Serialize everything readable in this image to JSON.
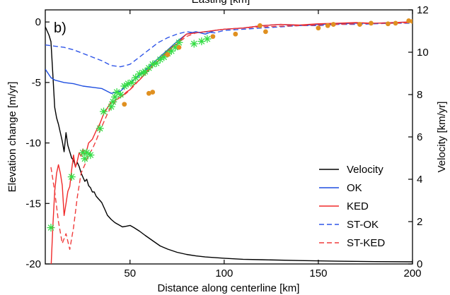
{
  "chart_data": {
    "type": "line",
    "top_label_clipped": "Easting [km]",
    "panel_label": "b)",
    "xlabel": "Distance along centerline [km]",
    "ylabel_left": "Elevation change [m/yr]",
    "ylabel_right": "Velocity [km/yr]",
    "xlim": [
      5,
      200
    ],
    "ylim_left": [
      -20,
      1
    ],
    "ylim_right": [
      0,
      12
    ],
    "x_ticks": [
      50,
      100,
      150,
      200
    ],
    "y_ticks_left": [
      0,
      -5,
      -10,
      -15,
      -20
    ],
    "y_ticks_right": [
      0,
      2,
      4,
      6,
      8,
      10,
      12
    ],
    "grid": false,
    "legend_position": "bottom-right",
    "colors": {
      "velocity": "#000000",
      "ok": "#1f4fe0",
      "ked": "#f02a2a",
      "st_ok": "#2f55e8",
      "st_ked": "#f03c3c",
      "green_markers": "#33dd44",
      "orange_markers": "#e09020"
    },
    "series": [
      {
        "name": "Velocity",
        "axis": "right",
        "style": "solid",
        "color_key": "velocity",
        "x": [
          5,
          6,
          7,
          8,
          9,
          10,
          11,
          12,
          13,
          14,
          15,
          16,
          17,
          18,
          19,
          20,
          21,
          22,
          23,
          24,
          25,
          26,
          27,
          28,
          29,
          30,
          31,
          32,
          33,
          34,
          35,
          36,
          37,
          38,
          39,
          40,
          42,
          44,
          46,
          48,
          50,
          52,
          55,
          58,
          62,
          66,
          70,
          75,
          80,
          85,
          90,
          100,
          110,
          120,
          140,
          160,
          180,
          200
        ],
        "values": [
          11.2,
          11.0,
          10.8,
          10.5,
          9.0,
          7.4,
          6.9,
          6.6,
          6.2,
          5.8,
          5.3,
          6.2,
          5.6,
          5.3,
          5.0,
          4.9,
          4.6,
          4.8,
          4.6,
          4.3,
          4.1,
          3.9,
          4.0,
          3.7,
          3.6,
          3.4,
          3.4,
          3.2,
          3.1,
          3.0,
          2.9,
          2.7,
          2.5,
          2.3,
          2.2,
          2.1,
          1.95,
          1.85,
          1.75,
          1.78,
          1.82,
          1.72,
          1.55,
          1.35,
          1.1,
          0.85,
          0.7,
          0.55,
          0.45,
          0.38,
          0.33,
          0.27,
          0.22,
          0.2,
          0.16,
          0.13,
          0.11,
          0.1
        ]
      },
      {
        "name": "OK",
        "axis": "left",
        "style": "solid",
        "color_key": "ok",
        "x": [
          5,
          8,
          10,
          15,
          20,
          25,
          30,
          35,
          40,
          45,
          50,
          55,
          60,
          65,
          70,
          75,
          80,
          85,
          90,
          95,
          100,
          110,
          120,
          130,
          140,
          150,
          160,
          170,
          180,
          190,
          200
        ],
        "values": [
          -3.9,
          -4.6,
          -4.8,
          -5.0,
          -5.1,
          -5.3,
          -5.4,
          -5.5,
          -5.9,
          -5.7,
          -5.0,
          -4.4,
          -3.7,
          -3.0,
          -2.3,
          -1.6,
          -1.0,
          -0.8,
          -1.0,
          -0.7,
          -0.6,
          -0.5,
          -0.3,
          -0.2,
          -0.3,
          -0.2,
          -0.15,
          -0.1,
          -0.1,
          -0.05,
          0.0
        ]
      },
      {
        "name": "KED",
        "axis": "left",
        "style": "solid",
        "color_key": "ked",
        "x": [
          8,
          9,
          10,
          11,
          12,
          13,
          14,
          15,
          16,
          17,
          18,
          19,
          20,
          21,
          22,
          23,
          24,
          25,
          26,
          27,
          28,
          30,
          32,
          34,
          36,
          38,
          40,
          42,
          44,
          46,
          48,
          50,
          52,
          55,
          58,
          60,
          62,
          65,
          68,
          70,
          72,
          75,
          78,
          80,
          85,
          90,
          95,
          100,
          110,
          120,
          130,
          140,
          150,
          160,
          170,
          180,
          190,
          200
        ],
        "values": [
          -20.5,
          -17.0,
          -14.0,
          -12.5,
          -11.8,
          -12.5,
          -13.5,
          -16.0,
          -15.0,
          -14.0,
          -13.6,
          -12.2,
          -11.0,
          -12.0,
          -11.5,
          -10.8,
          -11.1,
          -10.5,
          -11.0,
          -10.6,
          -10.0,
          -9.7,
          -9.0,
          -8.4,
          -7.6,
          -7.1,
          -6.6,
          -6.5,
          -6.3,
          -6.1,
          -5.8,
          -5.6,
          -5.2,
          -4.8,
          -4.3,
          -4.0,
          -3.6,
          -3.2,
          -2.7,
          -2.4,
          -2.1,
          -1.8,
          -1.3,
          -1.0,
          -0.9,
          -0.8,
          -0.7,
          -0.6,
          -0.5,
          -0.3,
          -0.2,
          -0.25,
          -0.15,
          -0.1,
          -0.05,
          -0.1,
          -0.05,
          0.0
        ]
      },
      {
        "name": "ST-OK",
        "axis": "left",
        "style": "dashed",
        "color_key": "st_ok",
        "x": [
          5,
          10,
          15,
          20,
          25,
          30,
          35,
          40,
          45,
          50,
          55,
          60,
          65,
          70,
          75,
          80,
          85,
          90,
          95,
          100,
          110,
          120,
          130,
          140,
          150,
          160,
          170,
          180,
          190,
          200
        ],
        "values": [
          -1.9,
          -2.0,
          -2.1,
          -2.3,
          -2.6,
          -2.9,
          -3.2,
          -3.6,
          -3.7,
          -3.5,
          -2.9,
          -2.3,
          -1.7,
          -1.3,
          -1.0,
          -0.8,
          -0.9,
          -0.8,
          -0.9,
          -0.7,
          -0.6,
          -0.5,
          -0.4,
          -0.3,
          -0.3,
          -0.2,
          -0.2,
          -0.15,
          -0.1,
          -0.1
        ]
      },
      {
        "name": "ST-KED",
        "axis": "left",
        "style": "dashed",
        "color_key": "st_ked",
        "x": [
          8,
          10,
          12,
          14,
          16,
          18,
          20,
          22,
          24,
          26,
          28,
          30,
          32,
          34,
          36,
          38,
          40,
          44,
          48,
          52,
          56,
          60,
          65,
          70,
          75,
          80,
          85,
          90,
          100,
          110,
          120,
          130,
          140,
          150,
          160,
          170,
          180,
          190,
          200
        ],
        "values": [
          -12.0,
          -14.0,
          -16.5,
          -18.3,
          -17.5,
          -18.8,
          -17.0,
          -14.5,
          -12.5,
          -11.8,
          -11.0,
          -10.5,
          -9.8,
          -9.0,
          -8.3,
          -7.6,
          -7.0,
          -6.3,
          -5.9,
          -5.3,
          -4.6,
          -3.9,
          -3.2,
          -2.5,
          -1.8,
          -1.2,
          -0.9,
          -0.8,
          -0.6,
          -0.5,
          -0.4,
          -0.35,
          -0.3,
          -0.25,
          -0.2,
          -0.15,
          -0.1,
          -0.1,
          -0.05
        ]
      }
    ],
    "marker_sets": [
      {
        "kind": "asterisk",
        "axis": "left",
        "color_key": "green_markers",
        "x": [
          8,
          19,
          25,
          26,
          27,
          29,
          34,
          36,
          40,
          41,
          42,
          43,
          45,
          47,
          49,
          51,
          53,
          55,
          57,
          58,
          60,
          62,
          64,
          66,
          68,
          70,
          72,
          74,
          76,
          84,
          88,
          91
        ],
        "y": [
          -17.0,
          -12.8,
          -10.8,
          -11.3,
          -10.8,
          -11.0,
          -8.8,
          -7.4,
          -7.0,
          -6.6,
          -6.2,
          -5.8,
          -6.0,
          -5.3,
          -5.1,
          -5.0,
          -4.6,
          -4.3,
          -4.2,
          -4.1,
          -3.8,
          -3.5,
          -3.4,
          -3.1,
          -2.9,
          -2.6,
          -2.4,
          -2.1,
          -1.7,
          -1.8,
          -1.6,
          -1.4
        ]
      },
      {
        "kind": "dot",
        "axis": "left",
        "color_key": "orange_markers",
        "x": [
          47,
          60,
          62,
          70,
          76,
          94,
          106,
          119,
          122,
          150,
          155,
          158,
          172,
          178,
          187,
          191,
          198,
          200
        ],
        "y": [
          -6.8,
          -5.9,
          -5.8,
          -2.7,
          -2.1,
          -1.2,
          -1.0,
          -0.3,
          -0.8,
          -0.5,
          -0.3,
          -0.2,
          -0.2,
          -0.1,
          -0.15,
          -0.1,
          0.1,
          0.05
        ]
      }
    ]
  }
}
